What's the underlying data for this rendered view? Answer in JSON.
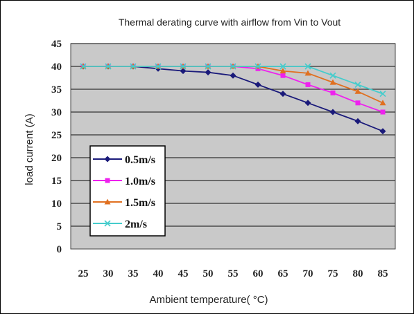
{
  "chart_data": {
    "type": "line",
    "title": "Thermal derating curve with airflow from Vin to Vout",
    "xlabel": "Ambient temperature( °C)",
    "ylabel": "load current (A)",
    "x": [
      25,
      30,
      35,
      40,
      45,
      50,
      55,
      60,
      65,
      70,
      75,
      80,
      85
    ],
    "xlim": [
      22.5,
      87.5
    ],
    "ylim": [
      0,
      45
    ],
    "yticks": [
      0,
      5,
      10,
      15,
      20,
      25,
      30,
      35,
      40,
      45
    ],
    "grid": true,
    "legend_position": "bottom-left",
    "series": [
      {
        "name": "0.5m/s",
        "color": "#1a1a7a",
        "marker": "diamond",
        "values": [
          40,
          40,
          40,
          39.5,
          39,
          38.7,
          38,
          36,
          34,
          32,
          30,
          28,
          25.8
        ]
      },
      {
        "name": "1.0m/s",
        "color": "#ee22ee",
        "marker": "square",
        "values": [
          40,
          40,
          40,
          40,
          40,
          40,
          40,
          39.5,
          38,
          36,
          34.2,
          32,
          30
        ]
      },
      {
        "name": "1.5m/s",
        "color": "#e07020",
        "marker": "triangle",
        "values": [
          40,
          40,
          40,
          40,
          40,
          40,
          40,
          40,
          39,
          38.5,
          36.5,
          34.5,
          32
        ]
      },
      {
        "name": "2m/s",
        "color": "#44cccc",
        "marker": "cross",
        "values": [
          40,
          40,
          40,
          40,
          40,
          40,
          40,
          40,
          40,
          40,
          38,
          36,
          34
        ]
      }
    ]
  }
}
